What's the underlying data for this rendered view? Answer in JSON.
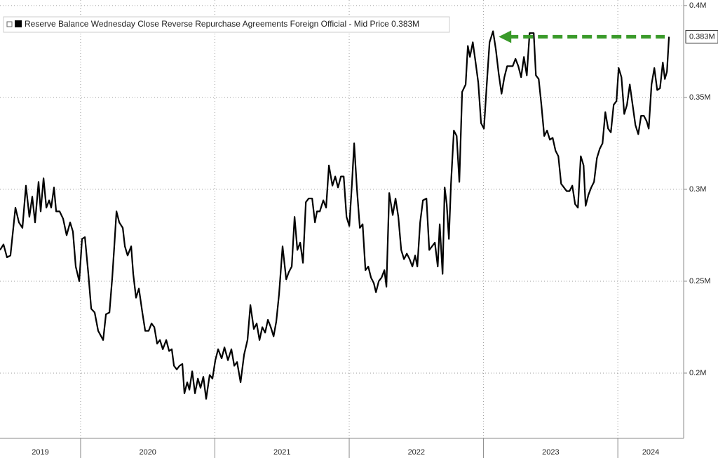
{
  "chart_data": {
    "type": "line",
    "series": [
      {
        "name": "Reserve Balance Wednesday Close Reverse Repurchase Agreements Foreign Official - Mid Price 0.383M",
        "color": "#000000",
        "x": [
          2019.4,
          2019.426,
          2019.452,
          2019.478,
          2019.515,
          2019.541,
          2019.567,
          2019.593,
          2019.619,
          2019.64,
          2019.661,
          2019.687,
          2019.703,
          2019.724,
          2019.745,
          2019.766,
          2019.781,
          2019.802,
          2019.818,
          2019.844,
          2019.87,
          2019.896,
          2019.922,
          2019.943,
          2019.964,
          2019.99,
          2020.011,
          2020.032,
          2020.058,
          2020.079,
          2020.105,
          2020.131,
          2020.168,
          2020.189,
          2020.215,
          2020.236,
          2020.251,
          2020.267,
          2020.288,
          2020.314,
          2020.33,
          2020.35,
          2020.377,
          2020.392,
          2020.413,
          2020.434,
          2020.46,
          2020.481,
          2020.507,
          2020.528,
          2020.549,
          2020.57,
          2020.591,
          2020.612,
          2020.638,
          2020.659,
          2020.679,
          2020.695,
          2020.716,
          2020.737,
          2020.758,
          2020.773,
          2020.794,
          2020.81,
          2020.831,
          2020.852,
          2020.873,
          2020.893,
          2020.914,
          2020.935,
          2020.961,
          2020.982,
          2021.003,
          2021.024,
          2021.05,
          2021.071,
          2021.097,
          2021.123,
          2021.144,
          2021.165,
          2021.191,
          2021.217,
          2021.243,
          2021.264,
          2021.29,
          2021.311,
          2021.332,
          2021.353,
          2021.374,
          2021.395,
          2021.416,
          2021.437,
          2021.457,
          2021.478,
          2021.504,
          2021.531,
          2021.551,
          2021.572,
          2021.593,
          2021.614,
          2021.635,
          2021.656,
          2021.677,
          2021.698,
          2021.724,
          2021.745,
          2021.76,
          2021.781,
          2021.807,
          2021.828,
          2021.849,
          2021.875,
          2021.896,
          2021.917,
          2021.938,
          2021.959,
          2021.98,
          2022.001,
          2022.021,
          2022.037,
          2022.058,
          2022.079,
          2022.1,
          2022.121,
          2022.142,
          2022.162,
          2022.183,
          2022.199,
          2022.22,
          2022.241,
          2022.262,
          2022.277,
          2022.298,
          2022.324,
          2022.345,
          2022.366,
          2022.387,
          2022.408,
          2022.429,
          2022.45,
          2022.47,
          2022.491,
          2022.507,
          2022.528,
          2022.549,
          2022.575,
          2022.596,
          2022.617,
          2022.638,
          2022.659,
          2022.674,
          2022.695,
          2022.711,
          2022.726,
          2022.742,
          2022.758,
          2022.779,
          2022.8,
          2022.82,
          2022.841,
          2022.867,
          2022.883,
          2022.899,
          2022.92,
          2022.941,
          2022.961,
          2022.982,
          2023.003,
          2023.024,
          2023.045,
          2023.071,
          2023.092,
          2023.113,
          2023.134,
          2023.155,
          2023.176,
          2023.196,
          2023.217,
          2023.238,
          2023.259,
          2023.28,
          2023.301,
          2023.322,
          2023.343,
          2023.374,
          2023.39,
          2023.411,
          2023.431,
          2023.452,
          2023.473,
          2023.494,
          2023.515,
          2023.536,
          2023.557,
          2023.578,
          2023.599,
          2023.619,
          2023.64,
          2023.661,
          2023.682,
          2023.703,
          2023.724,
          2023.745,
          2023.76,
          2023.781,
          2023.802,
          2023.823,
          2023.844,
          2023.865,
          2023.886,
          2023.907,
          2023.928,
          2023.948,
          2023.969,
          2023.99,
          2024.006,
          2024.027,
          2024.048,
          2024.068,
          2024.089,
          2024.11,
          2024.131,
          2024.152,
          2024.173,
          2024.194,
          2024.215,
          2024.23,
          2024.251,
          2024.272,
          2024.293,
          2024.314,
          2024.335,
          2024.35,
          2024.366,
          2024.381
        ],
        "values": [
          0.267,
          0.27,
          0.263,
          0.264,
          0.29,
          0.282,
          0.279,
          0.302,
          0.285,
          0.296,
          0.282,
          0.304,
          0.288,
          0.306,
          0.29,
          0.294,
          0.29,
          0.301,
          0.288,
          0.288,
          0.284,
          0.275,
          0.282,
          0.277,
          0.258,
          0.25,
          0.273,
          0.274,
          0.254,
          0.235,
          0.233,
          0.223,
          0.218,
          0.232,
          0.233,
          0.252,
          0.269,
          0.288,
          0.282,
          0.279,
          0.269,
          0.264,
          0.269,
          0.254,
          0.241,
          0.246,
          0.233,
          0.223,
          0.223,
          0.227,
          0.225,
          0.216,
          0.218,
          0.213,
          0.218,
          0.212,
          0.213,
          0.204,
          0.202,
          0.204,
          0.205,
          0.189,
          0.195,
          0.191,
          0.201,
          0.189,
          0.197,
          0.192,
          0.198,
          0.186,
          0.199,
          0.197,
          0.207,
          0.213,
          0.208,
          0.214,
          0.207,
          0.213,
          0.204,
          0.206,
          0.195,
          0.21,
          0.218,
          0.237,
          0.224,
          0.227,
          0.218,
          0.225,
          0.222,
          0.229,
          0.225,
          0.22,
          0.228,
          0.243,
          0.269,
          0.251,
          0.255,
          0.258,
          0.285,
          0.267,
          0.271,
          0.26,
          0.293,
          0.295,
          0.295,
          0.282,
          0.288,
          0.288,
          0.294,
          0.29,
          0.313,
          0.302,
          0.307,
          0.301,
          0.307,
          0.307,
          0.285,
          0.28,
          0.304,
          0.325,
          0.3,
          0.279,
          0.281,
          0.256,
          0.258,
          0.252,
          0.249,
          0.244,
          0.25,
          0.252,
          0.256,
          0.247,
          0.298,
          0.286,
          0.295,
          0.285,
          0.267,
          0.262,
          0.265,
          0.262,
          0.258,
          0.264,
          0.258,
          0.282,
          0.294,
          0.295,
          0.267,
          0.269,
          0.271,
          0.258,
          0.281,
          0.254,
          0.301,
          0.292,
          0.273,
          0.303,
          0.332,
          0.329,
          0.304,
          0.353,
          0.357,
          0.378,
          0.372,
          0.38,
          0.369,
          0.358,
          0.336,
          0.333,
          0.357,
          0.38,
          0.386,
          0.376,
          0.363,
          0.352,
          0.361,
          0.367,
          0.367,
          0.367,
          0.371,
          0.367,
          0.361,
          0.372,
          0.362,
          0.385,
          0.385,
          0.362,
          0.36,
          0.346,
          0.329,
          0.332,
          0.327,
          0.328,
          0.321,
          0.318,
          0.303,
          0.301,
          0.299,
          0.299,
          0.302,
          0.292,
          0.29,
          0.318,
          0.313,
          0.291,
          0.297,
          0.301,
          0.304,
          0.317,
          0.322,
          0.325,
          0.342,
          0.333,
          0.331,
          0.346,
          0.348,
          0.366,
          0.361,
          0.341,
          0.346,
          0.357,
          0.346,
          0.335,
          0.33,
          0.34,
          0.34,
          0.337,
          0.333,
          0.357,
          0.366,
          0.354,
          0.355,
          0.369,
          0.36,
          0.364,
          0.383
        ]
      }
    ],
    "last_value_label": "0.383M",
    "arrow_color": "#3a9a2a",
    "xlim": [
      2019.4,
      2024.49
    ],
    "xticks": [
      2020,
      2021,
      2022,
      2023,
      2024
    ],
    "year_labels": [
      "2019",
      "2020",
      "2021",
      "2022",
      "2023",
      "2024"
    ],
    "ylim": [
      0.1645,
      0.403
    ],
    "yticks": [
      {
        "value": 0.2,
        "label": "0.2M"
      },
      {
        "value": 0.25,
        "label": "0.25M"
      },
      {
        "value": 0.3,
        "label": "0.3M"
      },
      {
        "value": 0.35,
        "label": "0.35M"
      },
      {
        "value": 0.4,
        "label": "0.4M"
      }
    ],
    "grid": true
  }
}
